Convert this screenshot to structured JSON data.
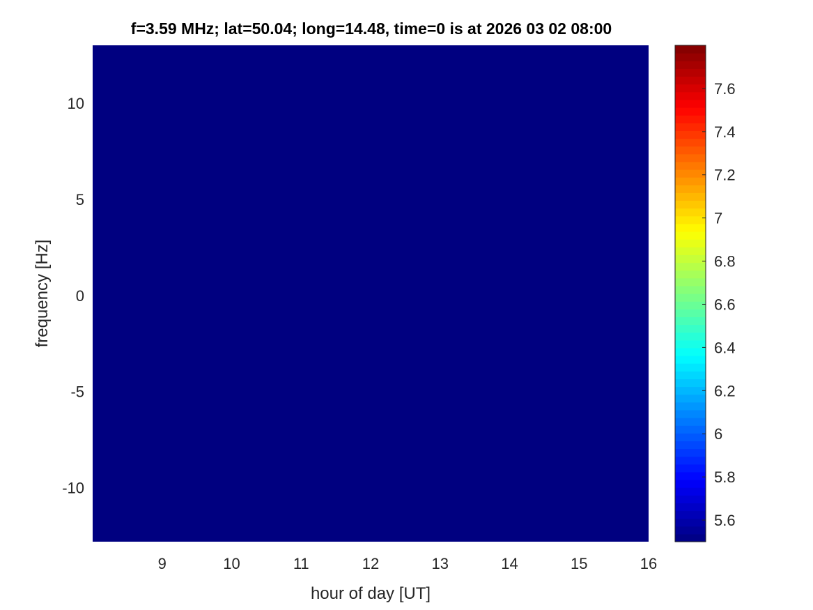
{
  "chart_data": {
    "type": "heatmap",
    "title": "f=3.59 MHz;  lat=50.04; long=14.48, time=0 is at 2026 03 02 08:00",
    "xlabel": "hour of day [UT]",
    "ylabel": "frequency [Hz]",
    "xlim": [
      8,
      16
    ],
    "ylim": [
      -12.8,
      13
    ],
    "xticks": [
      9,
      10,
      11,
      12,
      13,
      14,
      15,
      16
    ],
    "yticks": [
      -10,
      -5,
      0,
      5,
      10
    ],
    "colormap": "jet",
    "clim": [
      5.5,
      7.8
    ],
    "colorbar_ticks": [
      5.6,
      5.8,
      6,
      6.2,
      6.4,
      6.6,
      6.8,
      7,
      7.2,
      7.4,
      7.6
    ],
    "colorbar_location": "right",
    "z_uniform": 5.5,
    "fill_color": "#00008F"
  }
}
